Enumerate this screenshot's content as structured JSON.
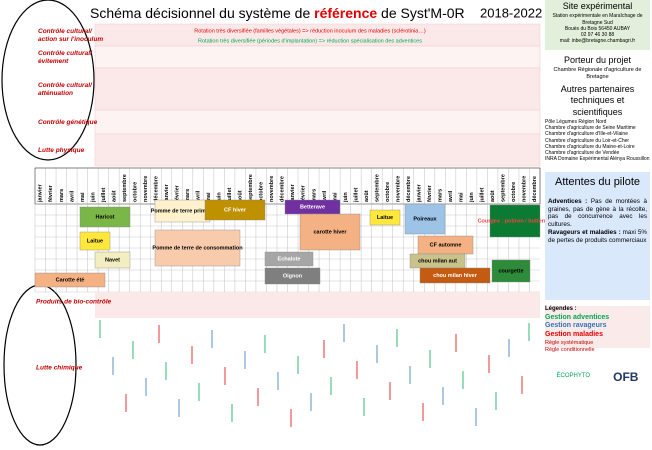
{
  "header": {
    "title_start": "Schéma décisionnel du système de ",
    "title_highlight": "référence",
    "title_end": " de Syst'M-0R",
    "period": "2018-2022"
  },
  "rows": [
    {
      "label": "Contrôle cultural/ action sur l'inoculum"
    },
    {
      "label": "Contrôle cultural/ évitement"
    },
    {
      "label": "Contrôle cultural/ atténuation"
    },
    {
      "label": "Contrôle génétique"
    },
    {
      "label": "Lutte physique"
    }
  ],
  "rotation_notes": [
    "Rotation très diversifiée (familles végétales) => réduction inoculum des maladies (sclérotinia…)",
    "Rotation très diversifiée (périodes d'implantation) => réduction spécialisation des adventices"
  ],
  "months": [
    "janvier",
    "février",
    "mars",
    "avril",
    "mai",
    "juin",
    "juillet",
    "août",
    "septembre",
    "octobre",
    "novembre",
    "décembre",
    "janvier",
    "février",
    "mars",
    "avril",
    "mai",
    "juin",
    "juillet",
    "août",
    "septembre",
    "octobre",
    "novembre",
    "décembre",
    "janvier",
    "février",
    "mars",
    "avril",
    "mai",
    "juin",
    "juillet",
    "août",
    "septembre",
    "octobre",
    "novembre",
    "décembre",
    "janvier",
    "février",
    "mars",
    "avril",
    "mai",
    "juin",
    "juillet",
    "août",
    "septembre",
    "octobre",
    "novembre",
    "décembre"
  ],
  "crops": [
    {
      "label": "Haricot",
      "color": "#7ab648",
      "text": "#000000"
    },
    {
      "label": "Laitue",
      "color": "#ffe83b",
      "text": "#000000"
    },
    {
      "label": "Navet",
      "color": "#f2eec0",
      "text": "#000000"
    },
    {
      "label": "Carotte été",
      "color": "#f4b183",
      "text": "#000000"
    },
    {
      "label": "Pomme de terre primeur",
      "color": "#fff2cc",
      "text": "#000000"
    },
    {
      "label": "Pomme de terre de consommation",
      "color": "#f8cbad",
      "text": "#000000"
    },
    {
      "label": "CF hiver",
      "color": "#bf9000",
      "text": "#ffffff"
    },
    {
      "label": "Echalote",
      "color": "#a6a6a6",
      "text": "#ffffff"
    },
    {
      "label": "Oignon",
      "color": "#7f7f7f",
      "text": "#ffffff"
    },
    {
      "label": "Betterave",
      "color": "#7030a0",
      "text": "#ffffff"
    },
    {
      "label": "carotte hiver",
      "color": "#f4b183",
      "text": "#000000"
    },
    {
      "label": "Laitue",
      "color": "#ffe83b",
      "text": "#000000"
    },
    {
      "label": "Poireaux",
      "color": "#9dc3e6",
      "text": "#000000"
    },
    {
      "label": "CF automne",
      "color": "#f4b183",
      "text": "#000000"
    },
    {
      "label": "chou milan aut",
      "color": "#c9c28a",
      "text": "#000000"
    },
    {
      "label": "chou milan hiver",
      "color": "#c55a11",
      "text": "#ffffff"
    },
    {
      "label": "Courges : potiron / butternut",
      "color": "#0b7a32",
      "text": "#ff4040"
    },
    {
      "label": "courgette",
      "color": "#2e8b3a",
      "text": "#000000"
    }
  ],
  "lower_rows": [
    {
      "label": "Produits de bio-contrôle"
    },
    {
      "label": "Lutte chimique"
    }
  ],
  "site": {
    "title": "Site expérimental",
    "lines": [
      "Station expérimentale en Maraîchage de Bretagne Sud",
      "Bouès du Bois 56450 AUBAY",
      "02 97 46 30 88",
      "mail: inbe@bretagne.chambagri.fr"
    ]
  },
  "porteur": {
    "title": "Porteur du projet",
    "items": [
      "Chambre Régionale d'agriculture de Bretagne"
    ]
  },
  "partners": {
    "title": "Autres partenaires techniques et scientifiques",
    "items": [
      "Pôle Légumes Région Nord",
      "Chambre d'agriculture de Seine Maritime",
      "Chambre d'agriculture d'Ille-et-Vilaine",
      "Chambre d'agriculture du Loir-et-Cher",
      "Chambre d'agriculture du Maine-et-Loire",
      "Chambre d'agriculture de Vendée",
      "INRA Domaine Expérimental Alénya Roussillon"
    ]
  },
  "attentes": {
    "title": "Attentes du pilote",
    "adventices_head": "Adventices :",
    "adventices_text": "Pas de montées à graines, pas de gène à la récolte, pas de concurrence avec les cultures.",
    "ravageurs_head": "Ravageurs et maladies :",
    "ravageurs_text": "maxi 5% de pertes de produits commerciaux"
  },
  "legend": {
    "title": "Légendes :",
    "items": [
      {
        "label": "Gestion adventices",
        "color": "#00a651"
      },
      {
        "label": "Gestion ravageurs",
        "color": "#2e75b6"
      },
      {
        "label": "Gestion maladies",
        "color": "#e00000"
      }
    ],
    "rules": [
      "Règle systématique",
      "Règle conditionnelle"
    ]
  },
  "logos": [
    "ÉCOPHYTO",
    "OFB"
  ]
}
